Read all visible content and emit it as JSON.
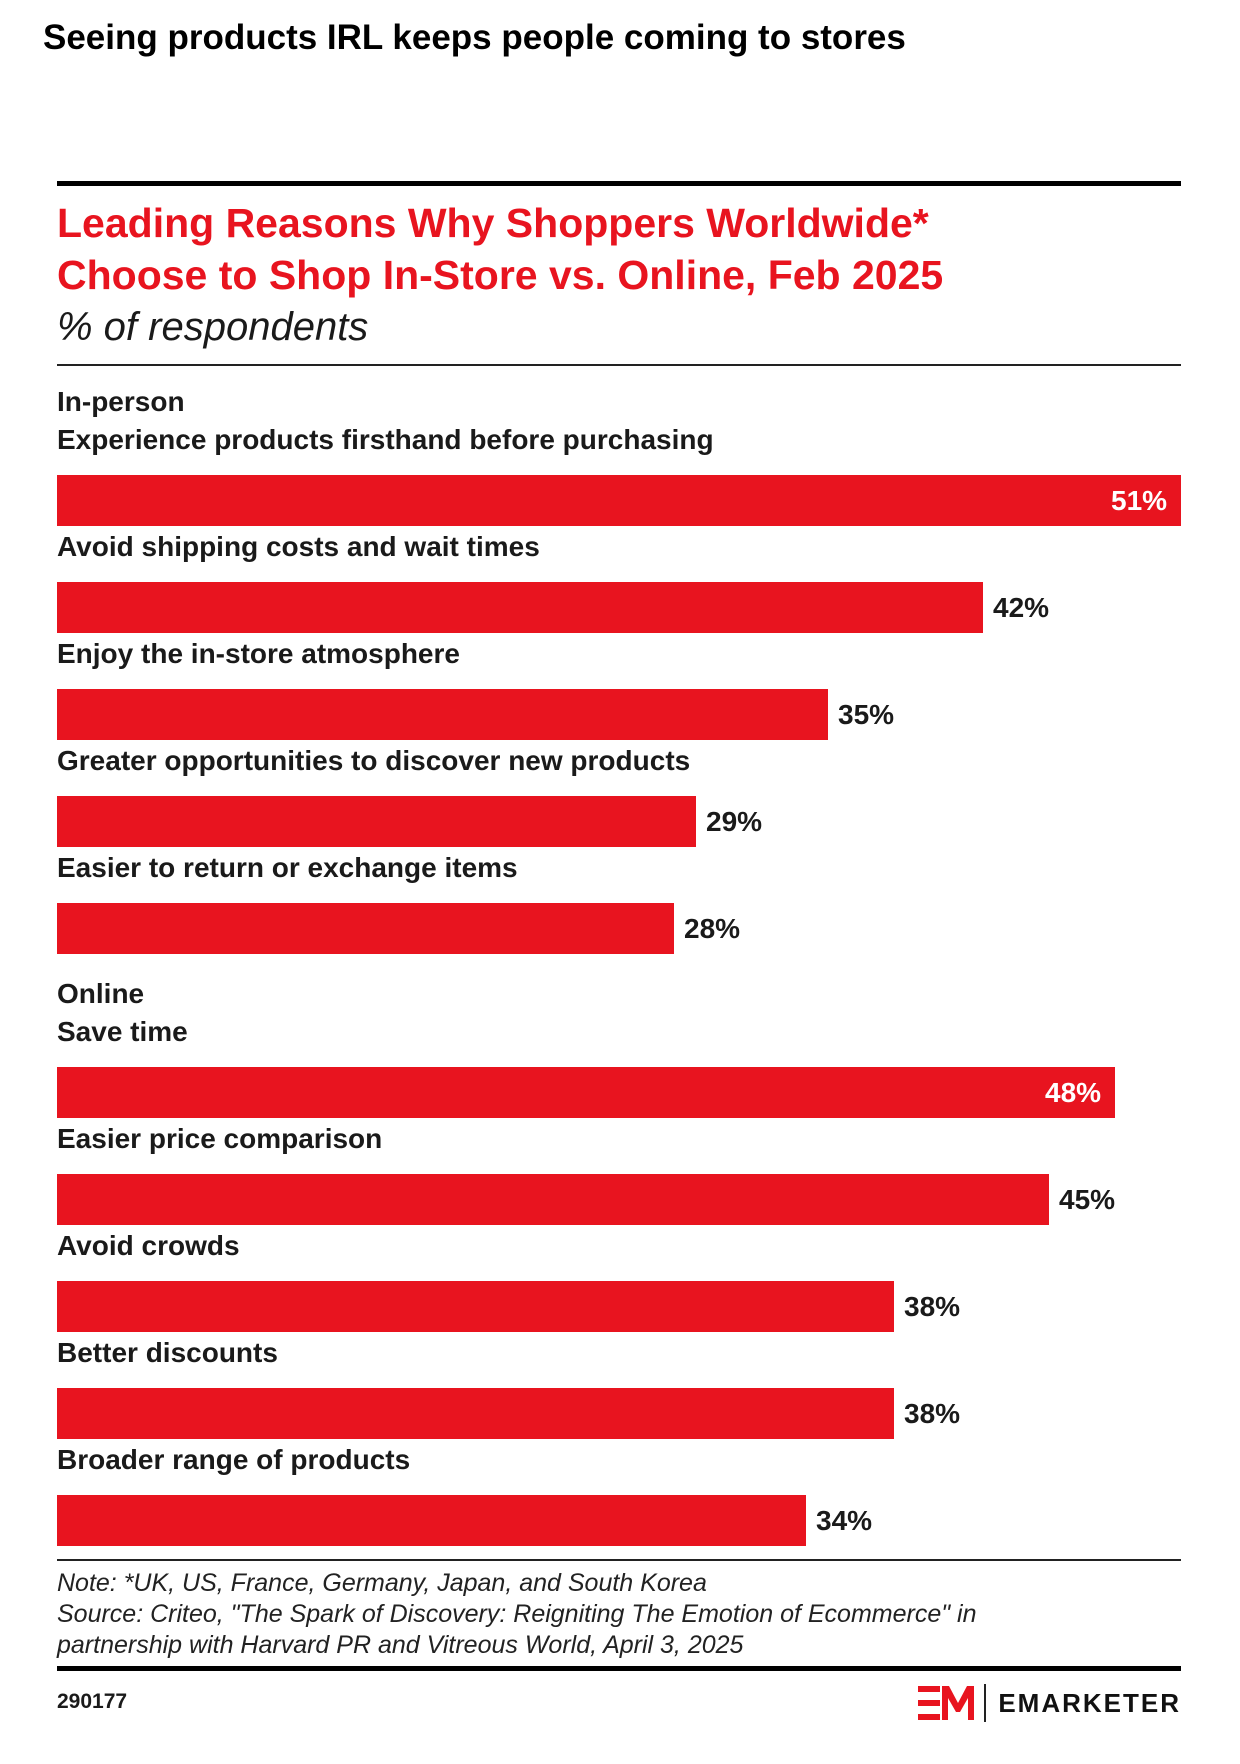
{
  "heading": "Seeing products IRL keeps people coming to stores",
  "chart_data": {
    "type": "bar",
    "orientation": "horizontal",
    "title": "Leading Reasons Why Shoppers Worldwide* Choose to Shop In-Store vs. Online, Feb 2025",
    "title_lines": [
      "Leading Reasons Why Shoppers Worldwide*",
      "Choose to Shop In-Store vs. Online, Feb 2025"
    ],
    "subtitle": "% of respondents",
    "xlim": [
      0,
      51
    ],
    "bar_color": "#e8141f",
    "groups": [
      {
        "name": "In-person",
        "items": [
          {
            "label": "Experience products firsthand before purchasing",
            "value": 51,
            "display": "51%"
          },
          {
            "label": "Avoid shipping costs and wait times",
            "value": 42,
            "display": "42%"
          },
          {
            "label": "Enjoy the in-store atmosphere",
            "value": 35,
            "display": "35%"
          },
          {
            "label": "Greater opportunities to discover new products",
            "value": 29,
            "display": "29%"
          },
          {
            "label": "Easier to return or exchange items",
            "value": 28,
            "display": "28%"
          }
        ]
      },
      {
        "name": "Online",
        "items": [
          {
            "label": "Save time",
            "value": 48,
            "display": "48%"
          },
          {
            "label": "Easier price comparison",
            "value": 45,
            "display": "45%"
          },
          {
            "label": "Avoid crowds",
            "value": 38,
            "display": "38%"
          },
          {
            "label": "Better discounts",
            "value": 38,
            "display": "38%"
          },
          {
            "label": "Broader range of products",
            "value": 34,
            "display": "34%"
          }
        ]
      }
    ]
  },
  "footer": {
    "note": "Note: *UK, US, France, Germany, Japan, and South Korea",
    "source_line1": "Source: Criteo, \"The Spark of Discovery: Reigniting The Emotion of Ecommerce\" in",
    "source_line2": "partnership with Harvard PR and Vitreous World, April 3, 2025",
    "chart_id": "290177",
    "brand_name": "EMARKETER",
    "brand_color": "#e8141f"
  }
}
